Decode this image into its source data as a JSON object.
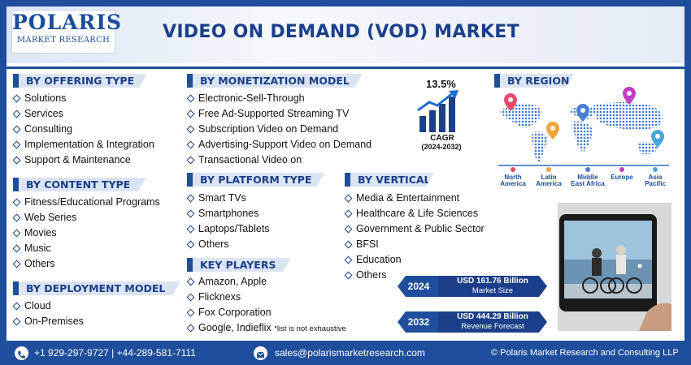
{
  "header": {
    "logo_top": "POLARIS",
    "logo_bottom": "MARKET RESEARCH",
    "title": "VIDEO ON DEMAND (VOD) MARKET"
  },
  "offering": {
    "title": "BY OFFERING TYPE",
    "items": [
      "Solutions",
      "Services",
      "Consulting",
      "Implementation & Integration",
      "Support & Maintenance"
    ]
  },
  "content_type": {
    "title": "BY CONTENT TYPE",
    "items": [
      "Fitness/Educational Programs",
      "Web Series",
      "Movies",
      "Music",
      "Others"
    ]
  },
  "deployment": {
    "title": "BY DEPLOYMENT MODEL",
    "items": [
      "Cloud",
      "On-Premises"
    ]
  },
  "monetization": {
    "title": "BY MONETIZATION MODEL",
    "items": [
      "Electronic-Sell-Through",
      "Free Ad-Supported Streaming TV",
      "Subscription Video on Demand",
      "Advertising-Support Video on Demand",
      "Transactional Video on"
    ]
  },
  "platform": {
    "title": "BY PLATFORM TYPE",
    "items": [
      "Smart TVs",
      "Smartphones",
      "Laptops/Tablets",
      "Others"
    ]
  },
  "key_players": {
    "title": "KEY PLAYERS",
    "items": [
      "Amazon, Apple",
      "Flicknexs",
      "Fox Corporation",
      "Google, Indieflix"
    ],
    "note": "*list is not exhaustive"
  },
  "vertical": {
    "title": "BY VERTICAL",
    "items": [
      "Media & Entertainment",
      "Healthcare & Life Sciences",
      "Government & Public Sector",
      "BFSI",
      "Education",
      "Others"
    ]
  },
  "cagr": {
    "value": "13.5%",
    "label": "CAGR",
    "period": "(2024-2032)"
  },
  "region": {
    "title": "BY REGION",
    "labels": [
      {
        "name": "North America",
        "line1": "North",
        "line2": "America",
        "color": "#e84a6a"
      },
      {
        "name": "Latin America",
        "line1": "Latin",
        "line2": "America",
        "color": "#f2a43a"
      },
      {
        "name": "Middle East Africa",
        "line1": "Middle",
        "line2": "East Africa",
        "color": "#4a7fd6"
      },
      {
        "name": "Europe",
        "line1": "Europe",
        "line2": "",
        "color": "#c43cc4"
      },
      {
        "name": "Asia Pacific",
        "line1": "Asia",
        "line2": "Pacific",
        "color": "#4aa8d8"
      }
    ]
  },
  "stats": [
    {
      "year": "2024",
      "value": "USD 161.76 Billion",
      "desc": "Market Size"
    },
    {
      "year": "2032",
      "value": "USD 444.29 Billion",
      "desc": "Revenue Forecast"
    }
  ],
  "footer": {
    "phone": "+1 929-297-9727 | +44-289-581-7111",
    "email": "sales@polarismarketresearch.com",
    "copyright": "© Polaris Market Research and Consulting LLP"
  },
  "colors": {
    "brand_blue": "#1f4f9c",
    "dark_blue": "#1b3f8a",
    "tag_bg": "#dbe4f2"
  }
}
